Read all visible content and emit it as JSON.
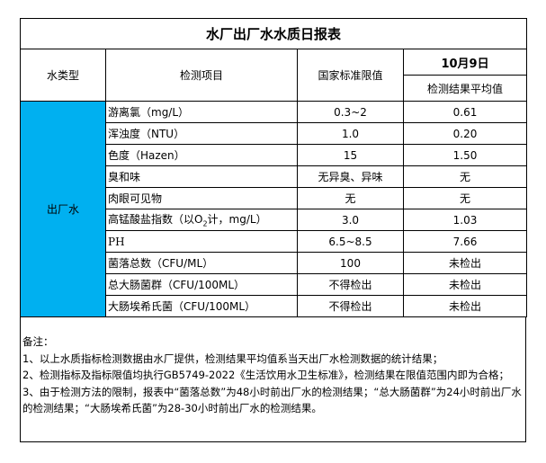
{
  "title": "水厂出厂水水质日报表",
  "header": {
    "type": "水类型",
    "item": "检测项目",
    "limit": "国家标准限值",
    "date": "10月9日",
    "avg": "检测结果平均值"
  },
  "water_type": "出厂水",
  "type_color": "#00B0F0",
  "rows": [
    {
      "item": "游离氯（mg/L）",
      "limit": "0.3~2",
      "value": "0.61"
    },
    {
      "item": "浑浊度（NTU）",
      "limit": "1.0",
      "value": "0.20"
    },
    {
      "item": "色度（Hazen）",
      "limit": "15",
      "value": "1.50"
    },
    {
      "item": "臭和味",
      "limit": "无异臭、异味",
      "value": "无"
    },
    {
      "item": "肉眼可见物",
      "limit": "无",
      "value": "无"
    },
    {
      "item_pre": "高锰酸盐指数（以O",
      "item_sub": "2",
      "item_post": "计，mg/L）",
      "limit": "3.0",
      "value": "1.03"
    },
    {
      "item": "PH",
      "limit": "6.5~8.5",
      "value": "7.66"
    },
    {
      "item": "菌落总数（CFU/ML）",
      "limit": "100",
      "value": "未检出"
    },
    {
      "item": "总大肠菌群（CFU/100ML）",
      "limit": "不得检出",
      "value": "未检出"
    },
    {
      "item": "大肠埃希氏菌（CFU/100ML）",
      "limit": "不得检出",
      "value": "未检出"
    }
  ],
  "notes": {
    "heading": "备注：",
    "lines": [
      "1、以上水质指标检测数据由水厂提供，检测结果平均值系当天出厂水检测数据的统计结果；",
      "2、检测指标及指标限值均执行GB5749-2022《生活饮用水卫生标准》，检测结果在限值范围内即为合格；",
      "3、由于检测方法的限制，报表中“菌落总数”为48小时前出厂水的检测结果；“总大肠菌群”为24小时前出厂水的检测结果；“大肠埃希氏菌”为28-30小时前出厂水的检测结果。"
    ]
  }
}
